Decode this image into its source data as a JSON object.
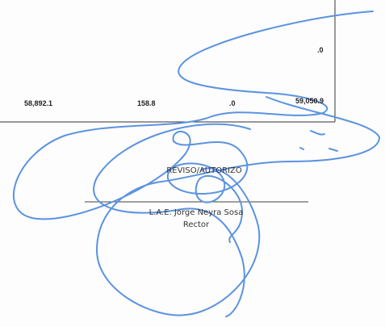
{
  "table": {
    "upper_value": ".0",
    "totals": [
      "58,892.1",
      "158.8",
      ".0",
      "59,050.9"
    ]
  },
  "signature": {
    "heading": "REVISO/AUTORIZO",
    "name": "L.A.E. Jorge Neyra Sosa",
    "position": "Rector"
  }
}
